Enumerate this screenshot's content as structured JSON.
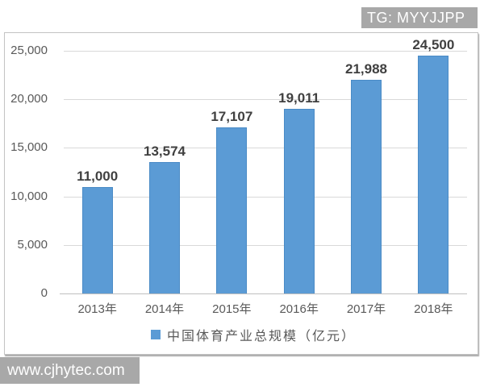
{
  "watermark_top": {
    "text": "TG: MYYJJPP",
    "bg": "#a8a8a8",
    "color": "#ffffff"
  },
  "watermark_bottom": {
    "text": "www.cjhytec.com",
    "bg": "#a8a8a8",
    "color": "#ffffff"
  },
  "chart_data": {
    "type": "bar",
    "title": "",
    "xlabel": "",
    "ylabel": "",
    "categories": [
      "2013年",
      "2014年",
      "2015年",
      "2016年",
      "2017年",
      "2018年"
    ],
    "values": [
      11000,
      13574,
      17107,
      19011,
      21988,
      24500
    ],
    "value_labels": [
      "11,000",
      "13,574",
      "17,107",
      "19,011",
      "21,988",
      "24,500"
    ],
    "y_axis": {
      "min": 0,
      "max": 25000,
      "ticks": [
        0,
        5000,
        10000,
        15000,
        20000,
        25000
      ],
      "tick_labels": [
        "0",
        "5,000",
        "10,000",
        "15,000",
        "20,000",
        "25,000"
      ]
    },
    "grid": true,
    "legend_position": "bottom",
    "legend": {
      "label": "中国体育产业总规模（亿元）",
      "swatch_color": "#5b9bd5"
    },
    "colors": {
      "bar_fill": "#5b9bd5",
      "bar_border": "#4a8bc6",
      "gridline": "#d9d9d9",
      "axis_line": "#bfbfbf",
      "value_label": "#404040",
      "tick_label": "#595959"
    }
  }
}
